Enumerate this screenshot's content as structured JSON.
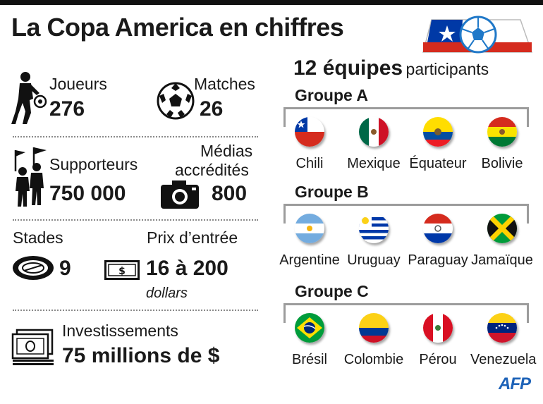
{
  "title": "La Copa America en chiffres",
  "stats": {
    "players_label": "Joueurs",
    "players_value": "276",
    "matches_label": "Matches",
    "matches_value": "26",
    "supporters_label": "Supporteurs",
    "supporters_value": "750 000",
    "media_label_line1": "Médias",
    "media_label_line2": "accrédités",
    "media_value": "800",
    "stadiums_label": "Stades",
    "stadiums_value": "9",
    "entry_label": "Prix d’entrée",
    "entry_value": "16 à 200",
    "entry_unit": "dollars",
    "investment_label": "Investissements",
    "investment_value": "75 millions de $"
  },
  "teams_header": {
    "count": "12 équipes",
    "suffix": "participants"
  },
  "groups": [
    {
      "name": "Groupe A",
      "teams": [
        "Chili",
        "Mexique",
        "Équateur",
        "Bolivie"
      ]
    },
    {
      "name": "Groupe B",
      "teams": [
        "Argentine",
        "Uruguay",
        "Paraguay",
        "Jamaïque"
      ]
    },
    {
      "name": "Groupe C",
      "teams": [
        "Brésil",
        "Colombie",
        "Pérou",
        "Venezuela"
      ]
    }
  ],
  "icons": {
    "players": "player-kicking-ball-icon",
    "matches": "soccer-ball-icon",
    "supporters": "fans-with-flags-icon",
    "media": "camera-icon",
    "stadiums": "stadium-icon",
    "entry": "banknote-icon",
    "investment": "money-stack-icon",
    "header": "chile-flag-ball-icon"
  },
  "credit": "AFP",
  "colors": {
    "accent": "#1e63b8",
    "text": "#1a1a1a",
    "divider": "#8a8a8a"
  }
}
